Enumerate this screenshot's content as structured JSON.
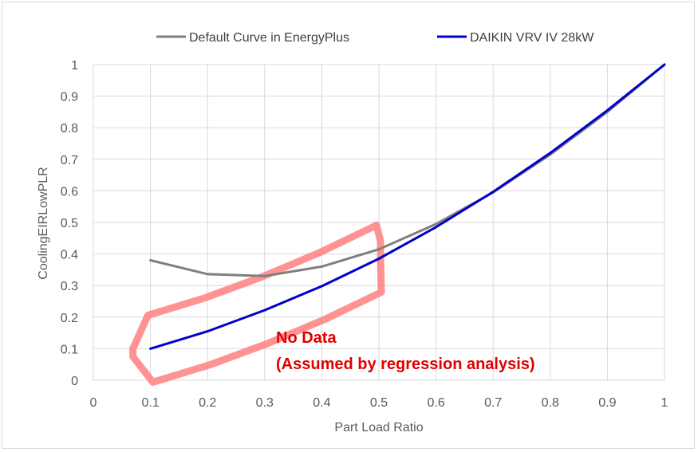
{
  "chart_data": {
    "type": "line",
    "title": "",
    "xlabel": "Part Load Ratio",
    "ylabel": "CoolingEIRLowPLR",
    "xlim": [
      0,
      1
    ],
    "ylim": [
      0,
      1
    ],
    "x_ticks": [
      "0",
      "0.1",
      "0.2",
      "0.3",
      "0.4",
      "0.5",
      "0.6",
      "0.7",
      "0.8",
      "0.9",
      "1"
    ],
    "y_ticks": [
      "0",
      "0.1",
      "0.2",
      "0.3",
      "0.4",
      "0.5",
      "0.6",
      "0.7",
      "0.8",
      "0.9",
      "1"
    ],
    "grid": true,
    "legend_position": "top",
    "series": [
      {
        "name": "Default Curve in EnergyPlus",
        "color": "#7f7f7f",
        "x": [
          0.1,
          0.2,
          0.3,
          0.4,
          0.5,
          0.6,
          0.7,
          0.8,
          0.9,
          1.0
        ],
        "y": [
          0.38,
          0.336,
          0.33,
          0.36,
          0.415,
          0.495,
          0.595,
          0.715,
          0.85,
          1.0
        ]
      },
      {
        "name": "DAIKIN VRV IV 28kW",
        "color": "#0000cc",
        "x": [
          0.1,
          0.2,
          0.3,
          0.4,
          0.5,
          0.6,
          0.7,
          0.8,
          0.9,
          1.0
        ],
        "y": [
          0.1,
          0.155,
          0.222,
          0.298,
          0.385,
          0.485,
          0.597,
          0.72,
          0.855,
          1.0
        ]
      }
    ],
    "annotation": {
      "line1": "No Data",
      "line2": "(Assumed by regression analysis)",
      "color": "#e00000",
      "highlight_color": "#ff8080",
      "highlight_x_range": [
        0.1,
        0.5
      ]
    }
  }
}
